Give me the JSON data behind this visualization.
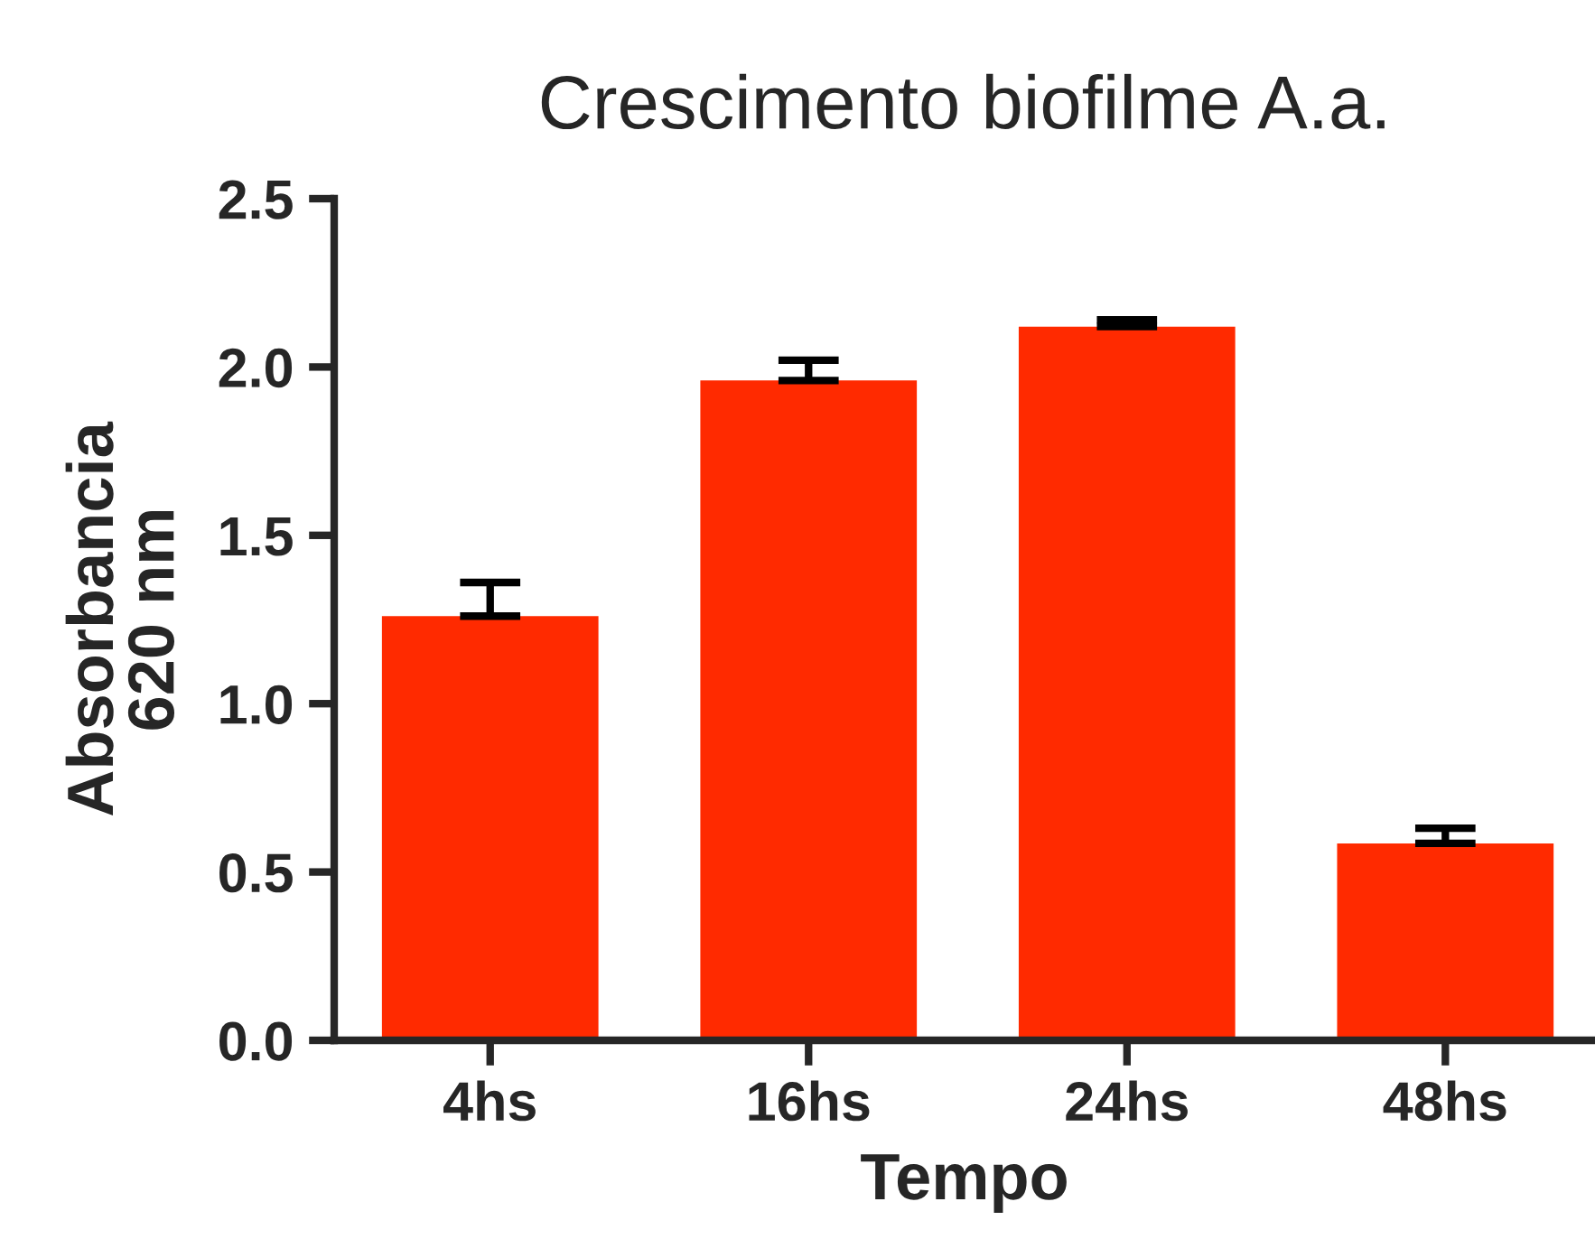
{
  "chart_data": {
    "type": "bar",
    "title": "Crescimento biofilme A.a.",
    "xlabel": "Tempo",
    "ylabel": "Absorbancia\n620 nm",
    "categories": [
      "4hs",
      "16hs",
      "24hs",
      "48hs"
    ],
    "values": [
      1.26,
      1.96,
      2.12,
      0.585
    ],
    "errors": [
      [
        1.26,
        1.36
      ],
      [
        1.96,
        2.02
      ],
      [
        2.12,
        2.14
      ],
      [
        0.585,
        0.63
      ]
    ],
    "color": "#ff2a00",
    "ylim": [
      0,
      2.5
    ],
    "yticks": [
      {
        "value": 0,
        "label": "0.0"
      },
      {
        "value": 0.5,
        "label": "0.5"
      },
      {
        "value": 1,
        "label": "1.0"
      },
      {
        "value": 1.5,
        "label": "1.5"
      },
      {
        "value": 2,
        "label": "2.0"
      },
      {
        "value": 2.5,
        "label": "2.5"
      }
    ],
    "grid": false,
    "legend": false
  }
}
